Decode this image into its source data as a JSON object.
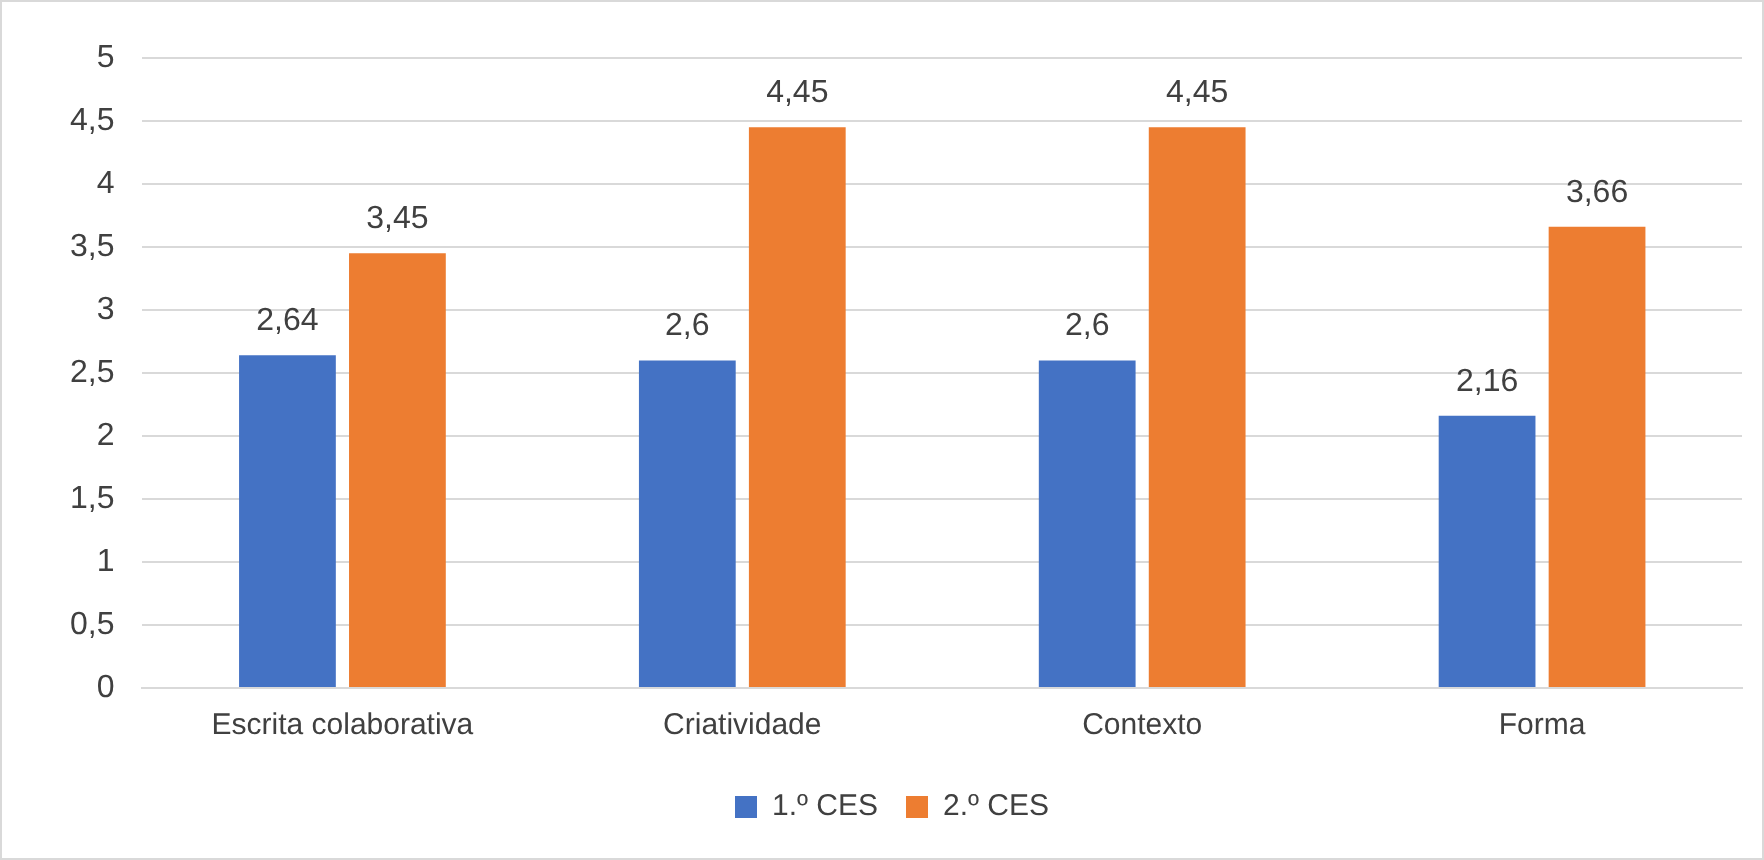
{
  "chart_data": {
    "type": "bar",
    "categories": [
      "Escrita colaborativa",
      "Criatividade",
      "Contexto",
      "Forma"
    ],
    "series": [
      {
        "name": "1.º CES",
        "color": "#4472c4",
        "values": [
          2.64,
          2.6,
          2.6,
          2.16
        ],
        "value_labels": [
          "2,64",
          "2,6",
          "2,6",
          "2,16"
        ]
      },
      {
        "name": "2.º CES",
        "color": "#ed7d31",
        "values": [
          3.45,
          4.45,
          4.45,
          3.66
        ],
        "value_labels": [
          "3,45",
          "4,45",
          "4,45",
          "3,66"
        ]
      }
    ],
    "ylim": [
      0,
      5
    ],
    "yticks": [
      0,
      {
        "value": 0.5,
        "label": "0,5"
      },
      1,
      {
        "value": 1.5,
        "label": "1,5"
      },
      2,
      {
        "value": 2.5,
        "label": "2,5"
      },
      3,
      {
        "value": 3.5,
        "label": "3,5"
      },
      4,
      {
        "value": 4.5,
        "label": "4,5"
      },
      5
    ],
    "grid": "y",
    "legend": "bottom"
  }
}
